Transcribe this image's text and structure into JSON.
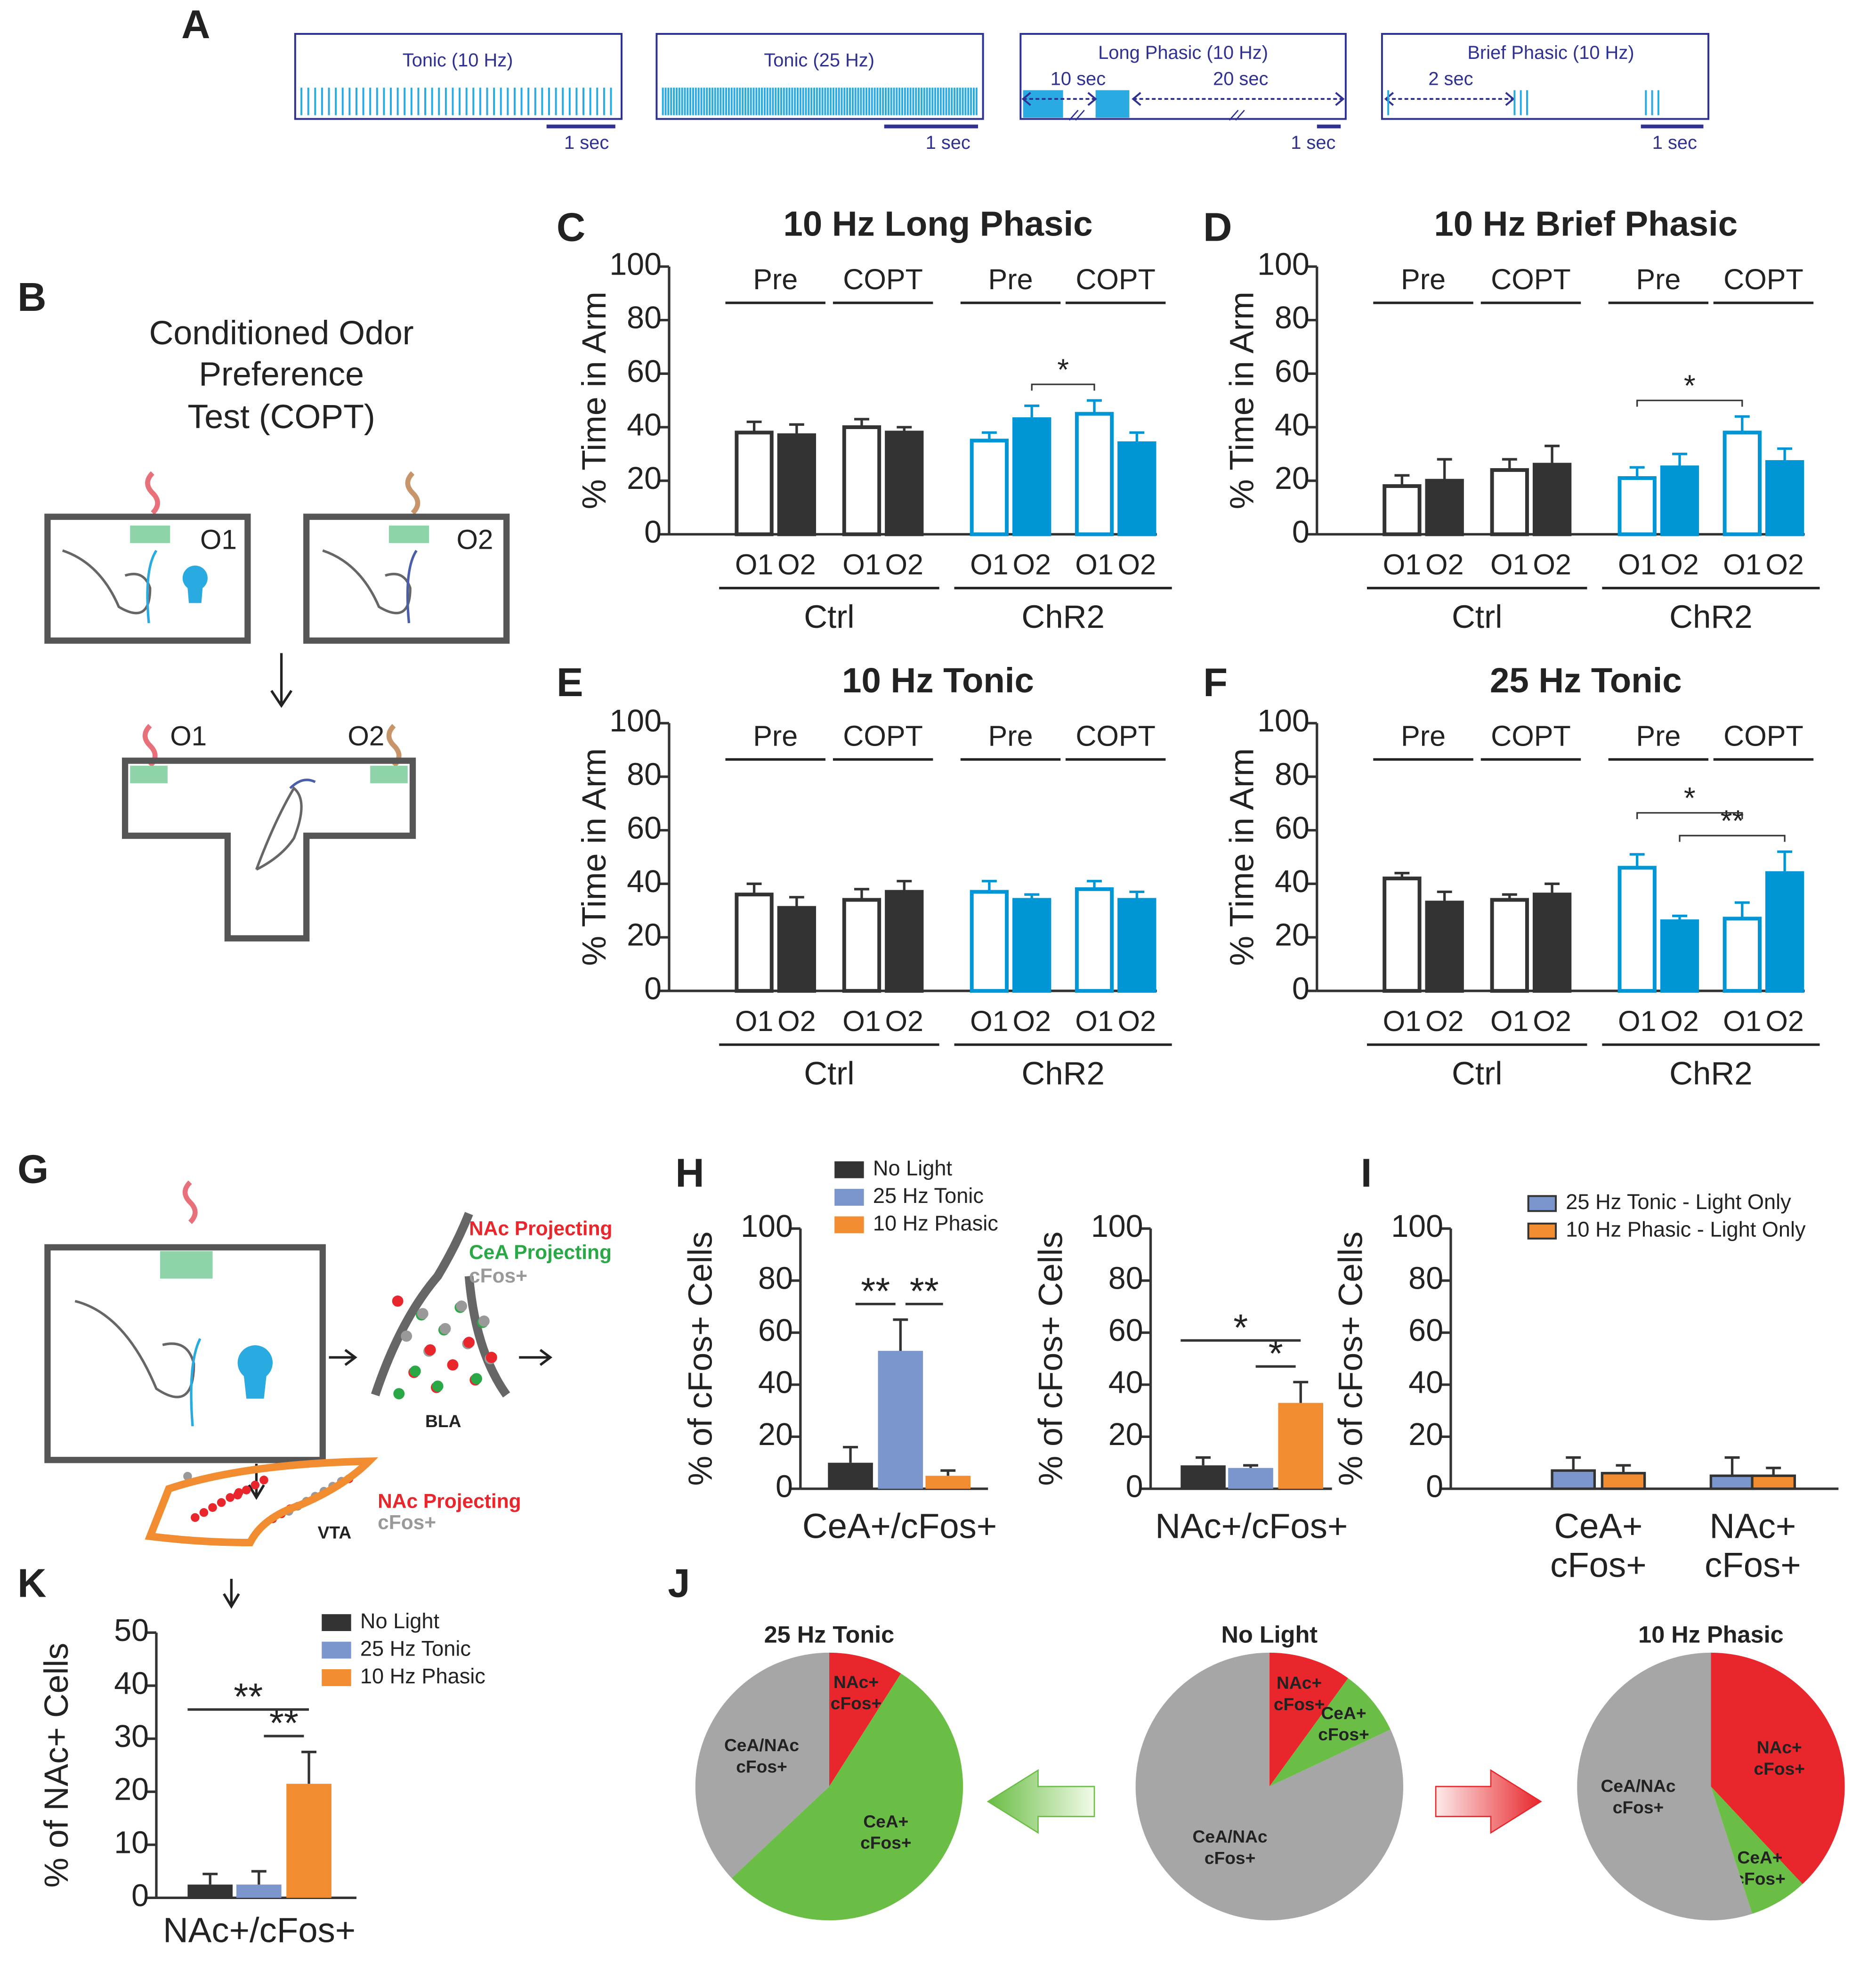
{
  "panel_labels": [
    "A",
    "B",
    "C",
    "D",
    "E",
    "F",
    "G",
    "H",
    "I",
    "J",
    "K"
  ],
  "panel_a": {
    "traces": [
      {
        "title": "Tonic (10 Hz)",
        "scale": "1 sec"
      },
      {
        "title": "Tonic (25 Hz)",
        "scale": "1 sec"
      },
      {
        "title": "Long Phasic (10 Hz)",
        "scale": "1 sec"
      },
      {
        "title": "Brief Phasic (10 Hz)",
        "scale": "1 sec"
      }
    ],
    "long_phasic_durations": [
      "10 sec",
      "20 sec"
    ],
    "brief_phasic_duration": "2 sec"
  },
  "panel_b": {
    "title_lines": [
      "Conditioned Odor",
      "Preference",
      "Test (COPT)"
    ],
    "odors": [
      "O1",
      "O2",
      "O1",
      "O2"
    ]
  },
  "panel_g": {
    "bla_labels": [
      "NAc Projecting",
      "CeA Projecting",
      "cFos+"
    ],
    "bla": "BLA",
    "vta_labels": [
      "NAc Projecting",
      "cFos+"
    ],
    "vta": "VTA"
  },
  "chart_data": [
    {
      "type": "bar",
      "title": "10 Hz Long Phasic",
      "ylabel": "% Time in Arm",
      "ylim": [
        0,
        100
      ],
      "yticks": [
        0,
        20,
        40,
        60,
        80,
        100
      ],
      "categories": [
        "O1",
        "O2",
        "O1",
        "O2",
        "O1",
        "O2",
        "O1",
        "O2"
      ],
      "groups": [
        "Pre",
        "COPT",
        "Pre",
        "COPT"
      ],
      "supergroups": [
        "Ctrl",
        "ChR2"
      ],
      "values": [
        38,
        37,
        40,
        38,
        35,
        43,
        45,
        34
      ],
      "errors": [
        4,
        4,
        3,
        2,
        3,
        5,
        5,
        4
      ],
      "fill_colors": [
        "#ffffff",
        "#333333",
        "#ffffff",
        "#333333",
        "#ffffff",
        "#0096d6",
        "#ffffff",
        "#0096d6"
      ],
      "edge_colors": [
        "#333333",
        "#333333",
        "#333333",
        "#333333",
        "#0096d6",
        "#0096d6",
        "#0096d6",
        "#0096d6"
      ],
      "significance": [
        {
          "from": 5,
          "to": 6,
          "label": "*"
        }
      ]
    },
    {
      "type": "bar",
      "title": "10 Hz Brief Phasic",
      "ylabel": "% Time in Arm",
      "ylim": [
        0,
        100
      ],
      "yticks": [
        0,
        20,
        40,
        60,
        80,
        100
      ],
      "categories": [
        "O1",
        "O2",
        "O1",
        "O2",
        "O1",
        "O2",
        "O1",
        "O2"
      ],
      "groups": [
        "Pre",
        "COPT",
        "Pre",
        "COPT"
      ],
      "supergroups": [
        "Ctrl",
        "ChR2"
      ],
      "values": [
        18,
        20,
        24,
        26,
        21,
        25,
        38,
        27
      ],
      "errors": [
        4,
        8,
        4,
        7,
        4,
        5,
        6,
        5
      ],
      "fill_colors": [
        "#ffffff",
        "#333333",
        "#ffffff",
        "#333333",
        "#ffffff",
        "#0096d6",
        "#ffffff",
        "#0096d6"
      ],
      "edge_colors": [
        "#333333",
        "#333333",
        "#333333",
        "#333333",
        "#0096d6",
        "#0096d6",
        "#0096d6",
        "#0096d6"
      ],
      "significance": [
        {
          "from": 4,
          "to": 6,
          "label": "*"
        }
      ]
    },
    {
      "type": "bar",
      "title": "10 Hz Tonic",
      "ylabel": "% Time in Arm",
      "ylim": [
        0,
        100
      ],
      "yticks": [
        0,
        20,
        40,
        60,
        80,
        100
      ],
      "categories": [
        "O1",
        "O2",
        "O1",
        "O2",
        "O1",
        "O2",
        "O1",
        "O2"
      ],
      "groups": [
        "Pre",
        "COPT",
        "Pre",
        "COPT"
      ],
      "supergroups": [
        "Ctrl",
        "ChR2"
      ],
      "values": [
        36,
        31,
        34,
        37,
        37,
        34,
        38,
        34
      ],
      "errors": [
        4,
        4,
        4,
        4,
        4,
        2,
        3,
        3
      ],
      "fill_colors": [
        "#ffffff",
        "#333333",
        "#ffffff",
        "#333333",
        "#ffffff",
        "#0096d6",
        "#ffffff",
        "#0096d6"
      ],
      "edge_colors": [
        "#333333",
        "#333333",
        "#333333",
        "#333333",
        "#0096d6",
        "#0096d6",
        "#0096d6",
        "#0096d6"
      ],
      "significance": []
    },
    {
      "type": "bar",
      "title": "25 Hz Tonic",
      "ylabel": "% Time in Arm",
      "ylim": [
        0,
        100
      ],
      "yticks": [
        0,
        20,
        40,
        60,
        80,
        100
      ],
      "categories": [
        "O1",
        "O2",
        "O1",
        "O2",
        "O1",
        "O2",
        "O1",
        "O2"
      ],
      "groups": [
        "Pre",
        "COPT",
        "Pre",
        "COPT"
      ],
      "supergroups": [
        "Ctrl",
        "ChR2"
      ],
      "values": [
        42,
        33,
        34,
        36,
        46,
        26,
        27,
        44
      ],
      "errors": [
        2,
        4,
        2,
        4,
        5,
        2,
        6,
        8
      ],
      "fill_colors": [
        "#ffffff",
        "#333333",
        "#ffffff",
        "#333333",
        "#ffffff",
        "#0096d6",
        "#ffffff",
        "#0096d6"
      ],
      "edge_colors": [
        "#333333",
        "#333333",
        "#333333",
        "#333333",
        "#0096d6",
        "#0096d6",
        "#0096d6",
        "#0096d6"
      ],
      "significance": [
        {
          "from": 5,
          "to": 7,
          "label": "**"
        },
        {
          "from": 4,
          "to": 6,
          "label": "*"
        }
      ]
    },
    {
      "type": "bar",
      "ylabel": "% of cFos+ Cells",
      "ylim": [
        0,
        100
      ],
      "yticks": [
        0,
        20,
        40,
        60,
        80,
        100
      ],
      "categories": [
        "CeA+/cFos+",
        "NAc+/cFos+"
      ],
      "series": [
        {
          "name": "No Light",
          "color": "#333333",
          "values": [
            10,
            9
          ],
          "errors": [
            6,
            3
          ]
        },
        {
          "name": "25 Hz Tonic",
          "color": "#7b96cc",
          "values": [
            53,
            8
          ],
          "errors": [
            12,
            1
          ]
        },
        {
          "name": "10 Hz Phasic",
          "color": "#f28c30",
          "values": [
            5,
            33
          ],
          "errors": [
            2,
            8
          ]
        }
      ],
      "significance": [
        {
          "category": 0,
          "from": 0,
          "to": 1,
          "label": "**"
        },
        {
          "category": 0,
          "from": 1,
          "to": 2,
          "label": "**"
        },
        {
          "category": 1,
          "from": 1,
          "to": 2,
          "label": "*"
        },
        {
          "category": 1,
          "from": 0,
          "to": 2,
          "label": "*"
        }
      ]
    },
    {
      "type": "bar",
      "ylabel": "% of cFos+ Cells",
      "ylim": [
        0,
        100
      ],
      "yticks": [
        0,
        20,
        40,
        60,
        80,
        100
      ],
      "categories": [
        [
          "CeA+",
          "cFos+"
        ],
        [
          "NAc+",
          "cFos+"
        ]
      ],
      "edge_color": "#333333",
      "series": [
        {
          "name": "25 Hz Tonic - Light Only",
          "color": "#7b96cc",
          "values": [
            7,
            5
          ],
          "errors": [
            5,
            7
          ]
        },
        {
          "name": "10 Hz Phasic - Light Only",
          "color": "#f28c30",
          "values": [
            6,
            5
          ],
          "errors": [
            3,
            3
          ]
        }
      ],
      "significance": []
    },
    {
      "type": "bar",
      "ylabel": "% of NAc+ Cells",
      "ylim": [
        0,
        50
      ],
      "yticks": [
        0,
        10,
        20,
        30,
        40,
        50
      ],
      "categories": [
        "NAc+/cFos+"
      ],
      "series": [
        {
          "name": "No Light",
          "color": "#333333",
          "values": [
            2.5
          ],
          "errors": [
            2
          ]
        },
        {
          "name": "25 Hz Tonic",
          "color": "#7b96cc",
          "values": [
            2.5
          ],
          "errors": [
            2.5
          ]
        },
        {
          "name": "10 Hz Phasic",
          "color": "#f28c30",
          "values": [
            21.5
          ],
          "errors": [
            6
          ]
        }
      ],
      "significance": [
        {
          "category": 0,
          "from": 1,
          "to": 2,
          "label": "**"
        },
        {
          "category": 0,
          "from": 0,
          "to": 2,
          "label": "**"
        }
      ]
    },
    {
      "type": "pie",
      "title": "25 Hz Tonic",
      "categories": [
        [
          "NAc+",
          "cFos+"
        ],
        [
          "CeA+",
          "cFos+"
        ],
        [
          "CeA/NAc",
          "cFos+"
        ]
      ],
      "values": [
        9,
        54,
        37
      ],
      "colors": [
        "#e8262b",
        "#6abd45",
        "#a6a6a6"
      ]
    },
    {
      "type": "pie",
      "title": "No Light",
      "categories": [
        [
          "NAc+",
          "cFos+"
        ],
        [
          "CeA+",
          "cFos+"
        ],
        [
          "CeA/NAc",
          "cFos+"
        ]
      ],
      "values": [
        10,
        8,
        82
      ],
      "colors": [
        "#e8262b",
        "#6abd45",
        "#a6a6a6"
      ]
    },
    {
      "type": "pie",
      "title": "10 Hz Phasic",
      "categories": [
        [
          "NAc+",
          "cFos+"
        ],
        [
          "CeA+",
          "cFos+"
        ],
        [
          "CeA/NAc",
          "cFos+"
        ]
      ],
      "values": [
        38,
        7,
        55
      ],
      "colors": [
        "#e8262b",
        "#6abd45",
        "#a6a6a6"
      ]
    }
  ]
}
